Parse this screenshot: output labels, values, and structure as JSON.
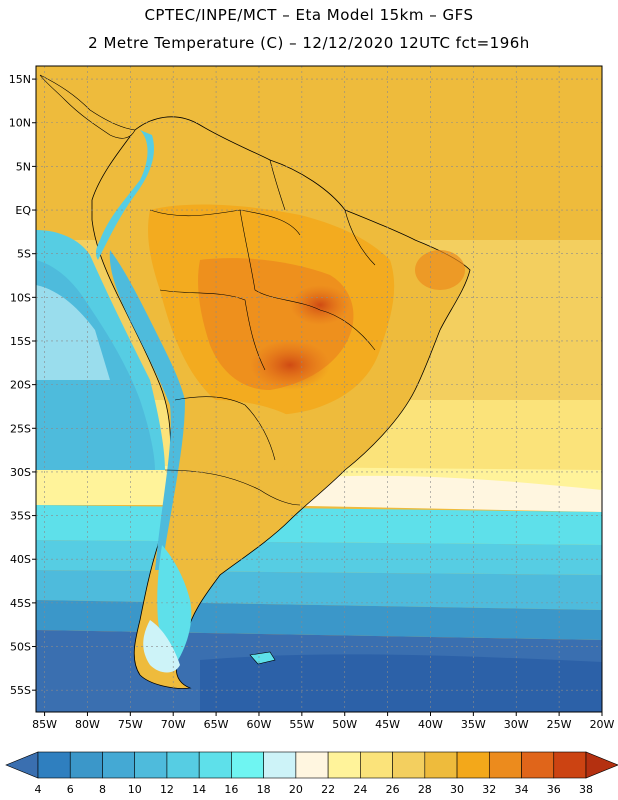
{
  "header": {
    "line1": "CPTEC/INPE/MCT –  Eta Model 15km – GFS",
    "line2": "2 Metre Temperature (C) – 12/12/2020 12UTC fct=196h"
  },
  "map": {
    "lat_labels": [
      "15N",
      "10N",
      "5N",
      "EQ",
      "5S",
      "10S",
      "15S",
      "20S",
      "25S",
      "30S",
      "35S",
      "40S",
      "45S",
      "50S",
      "55S"
    ],
    "lon_labels": [
      "85W",
      "80W",
      "75W",
      "70W",
      "65W",
      "60W",
      "55W",
      "50W",
      "45W",
      "40W",
      "35W",
      "30W",
      "25W",
      "20W"
    ],
    "lat_range": [
      -57.5,
      16.5
    ],
    "lon_range": [
      -86,
      -20
    ]
  },
  "colorbar": {
    "labels": [
      "4",
      "6",
      "8",
      "10",
      "12",
      "14",
      "16",
      "18",
      "20",
      "22",
      "24",
      "26",
      "28",
      "30",
      "32",
      "34",
      "36",
      "38"
    ],
    "colors": [
      "#3a6fb0",
      "#2f7fbf",
      "#3b97c9",
      "#44a9d4",
      "#4ebbdc",
      "#56cde3",
      "#5ee0ea",
      "#6ff5f2",
      "#cdf3f8",
      "#fff6e0",
      "#fff39a",
      "#fbe37a",
      "#f3cf5f",
      "#eebb3c",
      "#f3a81a",
      "#ec8b1d",
      "#e0651a",
      "#cc4312",
      "#b43010"
    ]
  },
  "colors": {
    "ocean_deep": "#2c61a8",
    "ocean_mid": "#3a8fc7",
    "ocean_light": "#56cde3",
    "warm": "#fbe37a",
    "land": "#eebb3c",
    "land_hot": "#e0651a"
  }
}
